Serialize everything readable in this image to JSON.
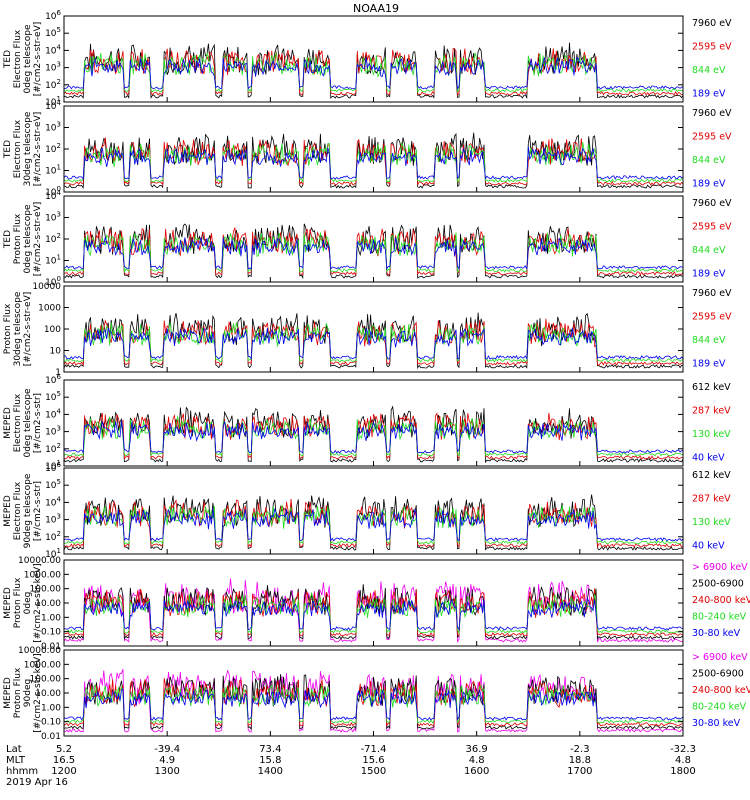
{
  "title": "NOAA19",
  "colors": {
    "black": "#000000",
    "red": "#e00000",
    "green": "#22dd22",
    "blue": "#0000ee",
    "magenta": "#ee00ee",
    "axis": "#000000"
  },
  "chart_data": [
    {
      "type": "line",
      "ylabel": [
        "TED",
        "Electron Flux",
        "0deg telescope",
        "[#/cm2-s-str-eV]"
      ],
      "yscale": "log",
      "y_ticks": [
        "10^1",
        "10^2",
        "10^3",
        "10^4",
        "10^5",
        "10^6"
      ],
      "series": [
        {
          "name": "7960 eV",
          "color": "black"
        },
        {
          "name": "2595 eV",
          "color": "red"
        },
        {
          "name": "844 eV",
          "color": "green"
        },
        {
          "name": "189 eV",
          "color": "blue"
        }
      ]
    },
    {
      "type": "line",
      "ylabel": [
        "TED",
        "Electron Flux",
        "30deg telescope",
        "[#/cm2-s-str-eV]"
      ],
      "yscale": "log",
      "y_ticks": [
        "10^0",
        "10^1",
        "10^2",
        "10^3",
        "10^4"
      ],
      "series": [
        {
          "name": "7960 eV",
          "color": "black"
        },
        {
          "name": "2595 eV",
          "color": "red"
        },
        {
          "name": "844 eV",
          "color": "green"
        },
        {
          "name": "189 eV",
          "color": "blue"
        }
      ]
    },
    {
      "type": "line",
      "ylabel": [
        "TED",
        "Proton Flux",
        "0deg telescope",
        "[#/cm2-s-str-eV]"
      ],
      "yscale": "log",
      "y_ticks": [
        "10^0",
        "10^1",
        "10^2",
        "10^3",
        "10^4"
      ],
      "series": [
        {
          "name": "7960 eV",
          "color": "black"
        },
        {
          "name": "2595 eV",
          "color": "red"
        },
        {
          "name": "844 eV",
          "color": "green"
        },
        {
          "name": "189 eV",
          "color": "blue"
        }
      ]
    },
    {
      "type": "line",
      "ylabel": [
        "Proton Flux",
        "30deg telescope",
        "[#/cm2-s-str-eV]"
      ],
      "yscale": "log",
      "y_ticks": [
        "1",
        "10",
        "100",
        "1000",
        "10000"
      ],
      "series": [
        {
          "name": "7960 eV",
          "color": "black"
        },
        {
          "name": "2595 eV",
          "color": "red"
        },
        {
          "name": "844 eV",
          "color": "green"
        },
        {
          "name": "189 eV",
          "color": "blue"
        }
      ]
    },
    {
      "type": "line",
      "ylabel": [
        "MEPED",
        "Electron Flux",
        "0deg telescope",
        "[#/cm2-s-str]"
      ],
      "yscale": "log",
      "y_ticks": [
        "10^1",
        "10^2",
        "10^3",
        "10^4",
        "10^5",
        "10^6"
      ],
      "series": [
        {
          "name": "612 keV",
          "color": "black"
        },
        {
          "name": "287 keV",
          "color": "red"
        },
        {
          "name": "130 keV",
          "color": "green"
        },
        {
          "name": "40 keV",
          "color": "blue"
        }
      ]
    },
    {
      "type": "line",
      "ylabel": [
        "MEPED",
        "Electron Flux",
        "90deg telescope",
        "[#/cm2-s-str]"
      ],
      "yscale": "log",
      "y_ticks": [
        "10^1",
        "10^2",
        "10^3",
        "10^4",
        "10^5",
        "10^6"
      ],
      "series": [
        {
          "name": "612 keV",
          "color": "black"
        },
        {
          "name": "287 keV",
          "color": "red"
        },
        {
          "name": "130 keV",
          "color": "green"
        },
        {
          "name": "40 keV",
          "color": "blue"
        }
      ]
    },
    {
      "type": "line",
      "ylabel": [
        "MEPED",
        "Proton Flux",
        "0deg",
        "[#/cm2-s-str-keV]"
      ],
      "yscale": "log",
      "y_ticks": [
        "0.01",
        "0.10",
        "1.00",
        "10.00",
        "100.00",
        "1000.00",
        "10000.00"
      ],
      "series": [
        {
          "name": "> 6900 keV",
          "color": "magenta"
        },
        {
          "name": "2500-6900",
          "color": "black"
        },
        {
          "name": "240-800 keV",
          "color": "red"
        },
        {
          "name": "80-240 keV",
          "color": "green"
        },
        {
          "name": "30-80 keV",
          "color": "blue"
        }
      ]
    },
    {
      "type": "line",
      "ylabel": [
        "MEPED",
        "Proton Flux",
        "90deg",
        "[#/cm2-s-str-keV]"
      ],
      "yscale": "log",
      "y_ticks": [
        "0.01",
        "0.10",
        "1.00",
        "10.00",
        "100.00",
        "1000.00",
        "10000.00"
      ],
      "series": [
        {
          "name": "> 6900 keV",
          "color": "magenta"
        },
        {
          "name": "2500-6900",
          "color": "black"
        },
        {
          "name": "240-800 keV",
          "color": "red"
        },
        {
          "name": "80-240 keV",
          "color": "green"
        },
        {
          "name": "30-80 keV",
          "color": "blue"
        }
      ]
    }
  ],
  "x_axis": {
    "row_labels": [
      "Lat",
      "MLT",
      "hhmm"
    ],
    "lat": [
      "5.2",
      "-39.4",
      "73.4",
      "-71.4",
      "36.9",
      "-2.3",
      "-32.3"
    ],
    "mlt": [
      "16.5",
      "4.9",
      "15.8",
      "15.6",
      "4.8",
      "18.8",
      "4.8"
    ],
    "hhmm": [
      "1200",
      "1300",
      "1400",
      "1500",
      "1600",
      "1700",
      "1800"
    ],
    "date": "2019 Apr 16"
  }
}
